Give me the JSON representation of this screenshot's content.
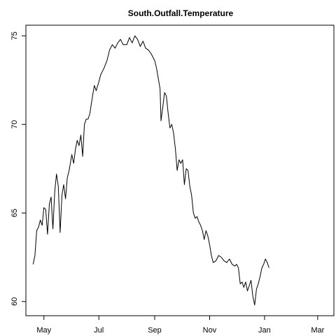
{
  "chart_data": {
    "type": "line",
    "title": "South.Outfall.Temperature",
    "xlabel": "",
    "ylabel": "",
    "x_tick_labels": [
      "May",
      "Jul",
      "Sep",
      "Nov",
      "Jan",
      "Mar"
    ],
    "x_tick_dates": [
      "05-01",
      "07-01",
      "09-01",
      "11-01",
      "01-01",
      "03-01"
    ],
    "xlim": [
      "04-11",
      "03-19"
    ],
    "y_ticks": [
      60,
      65,
      70,
      75
    ],
    "ylim": [
      59.2,
      75.6
    ],
    "line_color": "#000000",
    "grid": false,
    "legend": "none",
    "series": [
      {
        "values": [
          [
            "04-19",
            62.1
          ],
          [
            "04-21",
            62.6
          ],
          [
            "04-23",
            64.0
          ],
          [
            "04-25",
            64.2
          ],
          [
            "04-27",
            64.6
          ],
          [
            "04-29",
            64.3
          ],
          [
            "05-01",
            65.3
          ],
          [
            "05-03",
            65.2
          ],
          [
            "05-05",
            63.8
          ],
          [
            "05-07",
            65.5
          ],
          [
            "05-09",
            65.9
          ],
          [
            "05-11",
            64.1
          ],
          [
            "05-13",
            66.2
          ],
          [
            "05-15",
            67.2
          ],
          [
            "05-17",
            66.5
          ],
          [
            "05-19",
            63.9
          ],
          [
            "05-21",
            66.0
          ],
          [
            "05-23",
            66.6
          ],
          [
            "05-25",
            65.8
          ],
          [
            "05-27",
            67.0
          ],
          [
            "05-29",
            67.4
          ],
          [
            "06-01",
            68.3
          ],
          [
            "06-03",
            67.8
          ],
          [
            "06-05",
            68.6
          ],
          [
            "06-07",
            69.1
          ],
          [
            "06-09",
            68.8
          ],
          [
            "06-11",
            69.4
          ],
          [
            "06-13",
            68.2
          ],
          [
            "06-15",
            70.0
          ],
          [
            "06-17",
            70.3
          ],
          [
            "06-19",
            70.3
          ],
          [
            "06-21",
            70.6
          ],
          [
            "06-24",
            71.6
          ],
          [
            "06-26",
            72.2
          ],
          [
            "06-28",
            71.9
          ],
          [
            "07-01",
            72.4
          ],
          [
            "07-03",
            72.8
          ],
          [
            "07-05",
            73.0
          ],
          [
            "07-07",
            73.2
          ],
          [
            "07-10",
            73.6
          ],
          [
            "07-13",
            74.2
          ],
          [
            "07-16",
            74.5
          ],
          [
            "07-19",
            74.3
          ],
          [
            "07-22",
            74.6
          ],
          [
            "07-25",
            74.8
          ],
          [
            "07-28",
            74.5
          ],
          [
            "08-01",
            74.5
          ],
          [
            "08-04",
            74.9
          ],
          [
            "08-07",
            74.6
          ],
          [
            "08-10",
            75.0
          ],
          [
            "08-13",
            74.8
          ],
          [
            "08-16",
            74.4
          ],
          [
            "08-19",
            74.7
          ],
          [
            "08-22",
            74.3
          ],
          [
            "08-25",
            74.2
          ],
          [
            "08-28",
            74.0
          ],
          [
            "09-01",
            73.6
          ],
          [
            "09-03",
            73.2
          ],
          [
            "09-05",
            72.6
          ],
          [
            "09-07",
            72.0
          ],
          [
            "09-08",
            70.2
          ],
          [
            "09-10",
            71.0
          ],
          [
            "09-12",
            71.8
          ],
          [
            "09-14",
            71.6
          ],
          [
            "09-16",
            70.6
          ],
          [
            "09-18",
            69.8
          ],
          [
            "09-20",
            70.0
          ],
          [
            "09-22",
            69.5
          ],
          [
            "09-24",
            68.6
          ],
          [
            "09-26",
            67.4
          ],
          [
            "09-28",
            68.0
          ],
          [
            "09-30",
            67.8
          ],
          [
            "10-02",
            68.0
          ],
          [
            "10-04",
            66.6
          ],
          [
            "10-06",
            67.5
          ],
          [
            "10-08",
            67.4
          ],
          [
            "10-10",
            66.5
          ],
          [
            "10-12",
            66.0
          ],
          [
            "10-14",
            65.0
          ],
          [
            "10-16",
            64.7
          ],
          [
            "10-18",
            64.8
          ],
          [
            "10-20",
            64.5
          ],
          [
            "10-22",
            64.3
          ],
          [
            "10-24",
            64.0
          ],
          [
            "10-26",
            63.5
          ],
          [
            "10-28",
            64.0
          ],
          [
            "10-30",
            63.7
          ],
          [
            "11-01",
            63.2
          ],
          [
            "11-03",
            62.6
          ],
          [
            "11-05",
            62.2
          ],
          [
            "11-08",
            62.3
          ],
          [
            "11-11",
            62.6
          ],
          [
            "11-14",
            62.5
          ],
          [
            "11-17",
            62.3
          ],
          [
            "11-20",
            62.2
          ],
          [
            "11-23",
            62.4
          ],
          [
            "11-26",
            62.1
          ],
          [
            "11-29",
            62.0
          ],
          [
            "12-01",
            62.1
          ],
          [
            "12-03",
            61.9
          ],
          [
            "12-05",
            61.0
          ],
          [
            "12-07",
            61.1
          ],
          [
            "12-09",
            60.8
          ],
          [
            "12-11",
            61.1
          ],
          [
            "12-13",
            60.6
          ],
          [
            "12-15",
            60.9
          ],
          [
            "12-17",
            61.2
          ],
          [
            "12-19",
            60.3
          ],
          [
            "12-21",
            59.8
          ],
          [
            "12-23",
            60.7
          ],
          [
            "12-25",
            61.0
          ],
          [
            "12-27",
            61.4
          ],
          [
            "12-29",
            61.9
          ],
          [
            "12-31",
            62.1
          ],
          [
            "01-02",
            62.4
          ],
          [
            "01-04",
            62.2
          ],
          [
            "01-06",
            61.9
          ]
        ]
      }
    ]
  }
}
